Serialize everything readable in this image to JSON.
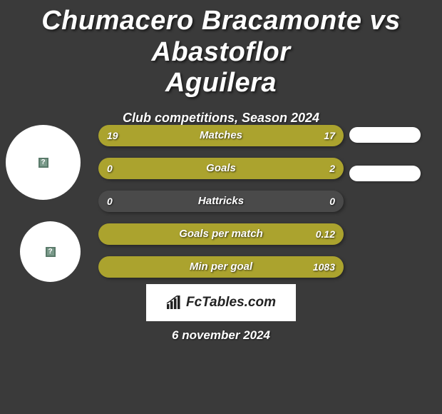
{
  "title_line1": "Chumacero Bracamonte vs Abastoflor",
  "title_line2": "Aguilera",
  "subtitle": "Club competitions, Season 2024",
  "date": "6 november 2024",
  "logo_text": "FcTables.com",
  "colors": {
    "background": "#3a3a3a",
    "bar_bg": "#4a4a4a",
    "player1": "#aba32e",
    "player2": "#ffffff",
    "text": "#ffffff"
  },
  "bars": [
    {
      "label": "Matches",
      "left_val": "19",
      "right_val": "17",
      "left_pct": 100,
      "right_pct": 0,
      "bg": "#aba32e"
    },
    {
      "label": "Goals",
      "left_val": "0",
      "right_val": "2",
      "left_pct": 0,
      "right_pct": 100,
      "bg": "#aba32e"
    },
    {
      "label": "Hattricks",
      "left_val": "0",
      "right_val": "0",
      "left_pct": 0,
      "right_pct": 0,
      "bg": "#4a4a4a"
    },
    {
      "label": "Goals per match",
      "left_val": "",
      "right_val": "0.12",
      "left_pct": 0,
      "right_pct": 100,
      "bg": "#aba32e"
    },
    {
      "label": "Min per goal",
      "left_val": "",
      "right_val": "1083",
      "left_pct": 0,
      "right_pct": 100,
      "bg": "#aba32e"
    }
  ],
  "pills_visible": [
    true,
    true,
    false,
    false,
    false
  ]
}
